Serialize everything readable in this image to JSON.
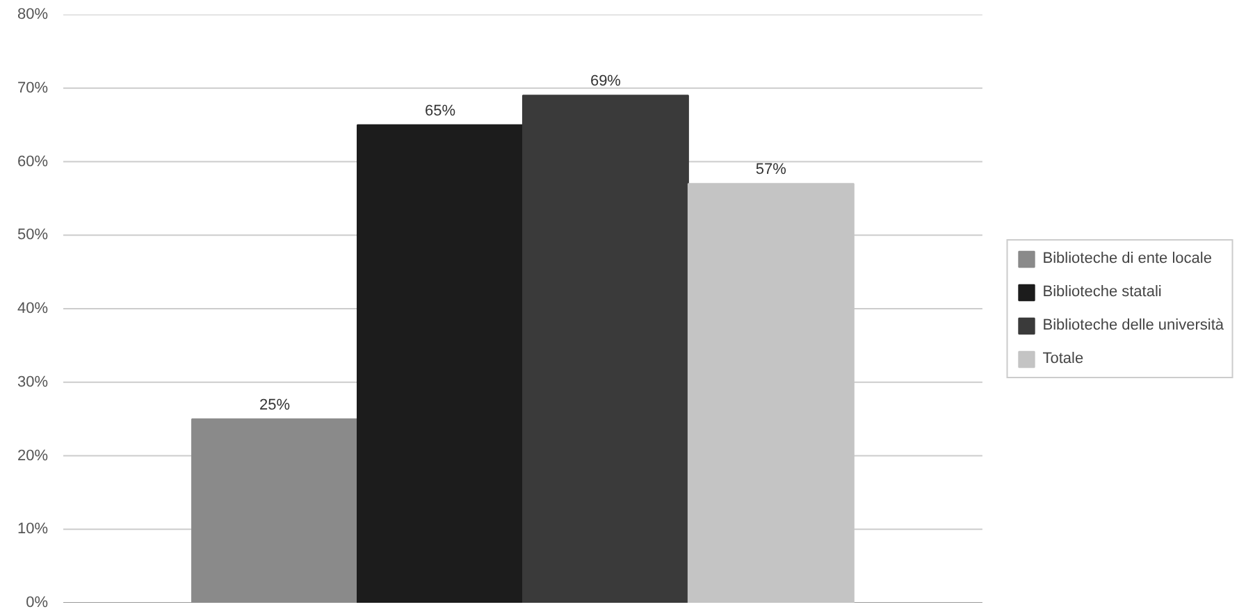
{
  "chart_data": {
    "type": "bar",
    "categories": [
      null
    ],
    "series": [
      {
        "name": "Biblioteche di ente locale",
        "color": "#8a8a8a",
        "values": [
          25
        ],
        "value_labels": [
          "25%"
        ]
      },
      {
        "name": "Biblioteche statali",
        "color": "#1c1c1c",
        "values": [
          65
        ],
        "value_labels": [
          "65%"
        ]
      },
      {
        "name": "Biblioteche delle università",
        "color": "#3a3a3a",
        "values": [
          69
        ],
        "value_labels": [
          "69%"
        ]
      },
      {
        "name": "Totale",
        "color": "#c4c4c4",
        "values": [
          57
        ],
        "value_labels": [
          "57%"
        ]
      }
    ],
    "ylim": [
      0,
      80
    ],
    "yticks": [
      {
        "value": 0,
        "label": "0%"
      },
      {
        "value": 10,
        "label": "10%"
      },
      {
        "value": 20,
        "label": "20%"
      },
      {
        "value": 30,
        "label": "30%"
      },
      {
        "value": 40,
        "label": "40%"
      },
      {
        "value": 50,
        "label": "50%"
      },
      {
        "value": 60,
        "label": "60%"
      },
      {
        "value": 70,
        "label": "70%"
      },
      {
        "value": 80,
        "label": "80%"
      }
    ],
    "grid": "y",
    "legend": "right"
  }
}
